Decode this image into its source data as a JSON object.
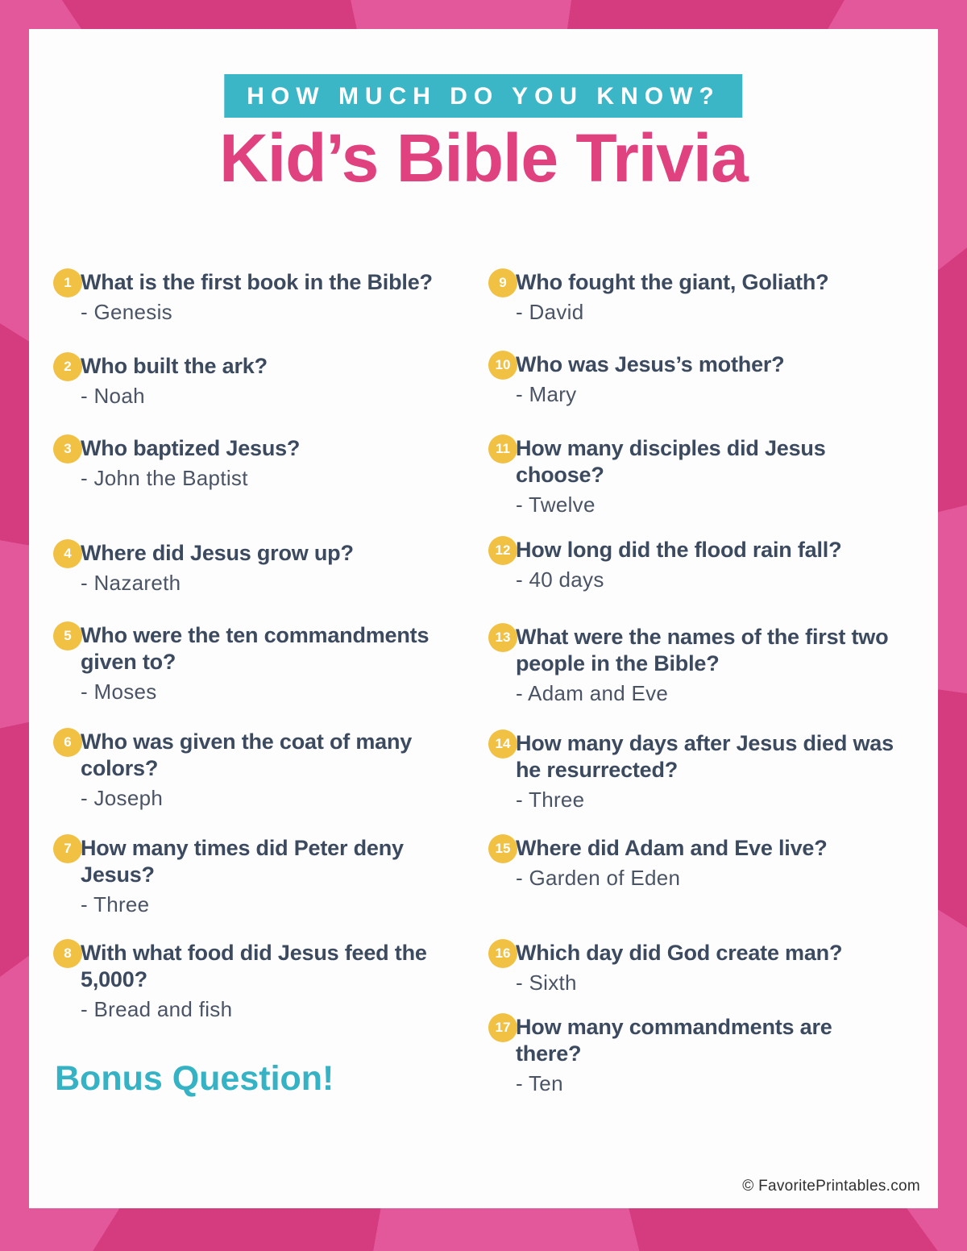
{
  "page": {
    "kicker": "HOW MUCH DO YOU KNOW?",
    "title": "Kid’s Bible Trivia",
    "bonus_label": "Bonus Question!",
    "copyright": "© FavoritePrintables.com"
  },
  "colors": {
    "border_dark_pink": "#d53c7f",
    "border_light_pink": "#e2589a",
    "banner_teal": "#3ab6c7",
    "title_pink": "#e0417f",
    "number_badge_yellow": "#f0c143",
    "question_navy": "#3c4a5f",
    "answer_gray": "#4a5464",
    "bonus_teal": "#35b3c5",
    "page_white": "#fdfdfe"
  },
  "questions": [
    {
      "num": "1",
      "question": "What is the first book in the Bible?",
      "answer": "- Genesis"
    },
    {
      "num": "2",
      "question": "Who built the ark?",
      "answer": "- Noah"
    },
    {
      "num": "3",
      "question": "Who baptized Jesus?",
      "answer": "- John the Baptist"
    },
    {
      "num": "4",
      "question": "Where did Jesus grow up?",
      "answer": "- Nazareth"
    },
    {
      "num": "5",
      "question": "Who were the ten commandments\ngiven to?",
      "answer": "- Moses"
    },
    {
      "num": "6",
      "question": "Who was given the coat of many\ncolors?",
      "answer": "- Joseph"
    },
    {
      "num": "7",
      "question": "How many times did Peter deny\nJesus?",
      "answer": "- Three"
    },
    {
      "num": "8",
      "question": "With what food did Jesus feed the\n5,000?",
      "answer": "- Bread and fish"
    },
    {
      "num": "9",
      "question": "Who fought the giant, Goliath?",
      "answer": "- David"
    },
    {
      "num": "10",
      "question": "Who was Jesus’s mother?",
      "answer": "- Mary"
    },
    {
      "num": "11",
      "question": "How many disciples did Jesus\nchoose?",
      "answer": "- Twelve"
    },
    {
      "num": "12",
      "question": "How long did the flood rain fall?",
      "answer": "- 40 days"
    },
    {
      "num": "13",
      "question": "What were the names of the first two\npeople in the Bible?",
      "answer": "- Adam and Eve"
    },
    {
      "num": "14",
      "question": "How many days after Jesus died was\nhe resurrected?",
      "answer": "- Three"
    },
    {
      "num": "15",
      "question": "Where did Adam and Eve live?",
      "answer": "- Garden of Eden"
    },
    {
      "num": "16",
      "question": "Which day did God create man?",
      "answer": "- Sixth"
    },
    {
      "num": "17",
      "question": "How many commandments are\nthere?",
      "answer": "- Ten"
    }
  ]
}
